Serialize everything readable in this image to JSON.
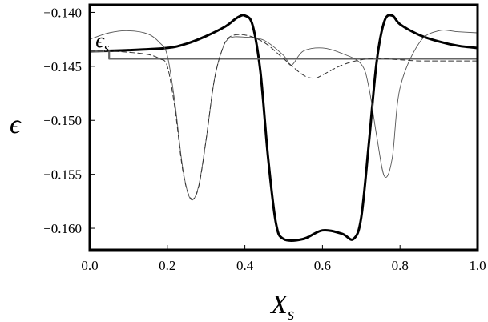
{
  "chart_data": {
    "type": "line",
    "title": "",
    "xlabel": "X",
    "xlabel_sub": "s",
    "ylabel": "ϵ",
    "xlim": [
      0,
      1
    ],
    "ylim": [
      -0.162,
      -0.1393
    ],
    "x_ticks": [
      {
        "value": 0.0,
        "label": "0.0"
      },
      {
        "value": 0.2,
        "label": "0.2"
      },
      {
        "value": 0.4,
        "label": "0.4"
      },
      {
        "value": 0.6,
        "label": "0.6"
      },
      {
        "value": 0.8,
        "label": "0.8"
      },
      {
        "value": 1.0,
        "label": "1.0"
      }
    ],
    "y_ticks": [
      {
        "value": -0.14,
        "label": "−0.140"
      },
      {
        "value": -0.145,
        "label": "−0.145"
      },
      {
        "value": -0.15,
        "label": "−0.150"
      },
      {
        "value": -0.155,
        "label": "−0.155"
      },
      {
        "value": -0.16,
        "label": "−0.160"
      }
    ],
    "annotation": {
      "text": "ϵ",
      "sub": "s",
      "x": 0.015,
      "y": -0.1425
    },
    "grid": false,
    "series": [
      {
        "style": "thick",
        "color": "#000000",
        "x": [
          0.0,
          0.1,
          0.2,
          0.25,
          0.3,
          0.35,
          0.38,
          0.4,
          0.42,
          0.44,
          0.46,
          0.48,
          0.5,
          0.55,
          0.6,
          0.65,
          0.68,
          0.7,
          0.72,
          0.74,
          0.76,
          0.78,
          0.8,
          0.85,
          0.9,
          0.95,
          1.0
        ],
        "y": [
          -0.1436,
          -0.1435,
          -0.1433,
          -0.1429,
          -0.1422,
          -0.1413,
          -0.1405,
          -0.1403,
          -0.1412,
          -0.1455,
          -0.1535,
          -0.1595,
          -0.161,
          -0.161,
          -0.1602,
          -0.1605,
          -0.161,
          -0.159,
          -0.152,
          -0.1445,
          -0.1408,
          -0.1403,
          -0.1411,
          -0.1421,
          -0.1427,
          -0.1431,
          -0.1433
        ]
      },
      {
        "style": "step",
        "color": "#666666",
        "x": [
          0.0,
          0.05,
          0.05,
          1.0
        ],
        "y": [
          -0.1436,
          -0.1436,
          -0.1443,
          -0.1443
        ]
      },
      {
        "style": "thin",
        "color": "#555555",
        "x": [
          0.0,
          0.05,
          0.1,
          0.15,
          0.18,
          0.2,
          0.22,
          0.24,
          0.26,
          0.28,
          0.3,
          0.32,
          0.34,
          0.36,
          0.4,
          0.45,
          0.5,
          0.52,
          0.55,
          0.6,
          0.65,
          0.7,
          0.72,
          0.74,
          0.76,
          0.78,
          0.8,
          0.85,
          0.9,
          0.95,
          1.0
        ],
        "y": [
          -0.1425,
          -0.1419,
          -0.1417,
          -0.142,
          -0.1428,
          -0.144,
          -0.1485,
          -0.1545,
          -0.1573,
          -0.1562,
          -0.1518,
          -0.1465,
          -0.1436,
          -0.1424,
          -0.1423,
          -0.1426,
          -0.144,
          -0.1449,
          -0.1436,
          -0.1433,
          -0.1438,
          -0.1448,
          -0.147,
          -0.1515,
          -0.1552,
          -0.1535,
          -0.147,
          -0.1428,
          -0.1417,
          -0.1418,
          -0.1419
        ]
      },
      {
        "style": "dashed",
        "color": "#333333",
        "x": [
          0.0,
          0.05,
          0.1,
          0.15,
          0.18,
          0.2,
          0.22,
          0.24,
          0.26,
          0.28,
          0.3,
          0.32,
          0.34,
          0.36,
          0.4,
          0.45,
          0.5,
          0.55,
          0.58,
          0.6,
          0.65,
          0.7,
          0.75,
          0.8,
          0.85,
          0.9,
          0.95,
          1.0
        ],
        "y": [
          -0.1436,
          -0.1436,
          -0.1437,
          -0.1439,
          -0.1443,
          -0.145,
          -0.149,
          -0.1547,
          -0.1572,
          -0.1563,
          -0.1518,
          -0.1465,
          -0.1436,
          -0.1423,
          -0.1421,
          -0.1428,
          -0.1443,
          -0.1458,
          -0.1461,
          -0.1458,
          -0.1449,
          -0.1444,
          -0.1443,
          -0.1444,
          -0.1445,
          -0.1445,
          -0.1445,
          -0.1445
        ]
      }
    ]
  }
}
